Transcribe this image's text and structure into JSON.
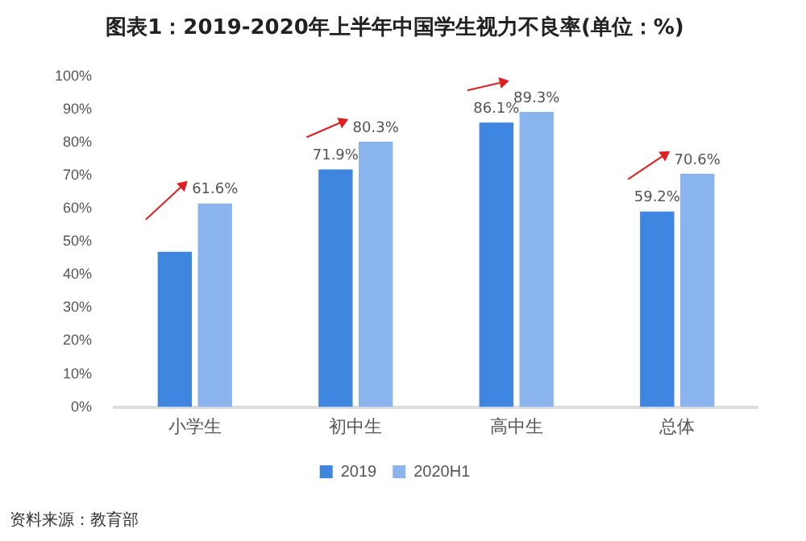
{
  "chart_data": {
    "type": "bar",
    "title": "图表1：2019-2020年上半年中国学生视力不良率(单位：%)",
    "categories": [
      "小学生",
      "初中生",
      "高中生",
      "总体"
    ],
    "series": [
      {
        "name": "2019",
        "color": "#3f86e0",
        "values": [
          47,
          71.9,
          86.1,
          59.2
        ],
        "value_labels": [
          null,
          "71.9%",
          "86.1%",
          "59.2%"
        ]
      },
      {
        "name": "2020H1",
        "color": "#8ab4ee",
        "values": [
          61.6,
          80.3,
          89.3,
          70.6
        ],
        "value_labels": [
          "61.6%",
          "80.3%",
          "89.3%",
          "70.6%"
        ]
      }
    ],
    "ylim": [
      0,
      100
    ],
    "yticks": [
      {
        "value": 0,
        "label": "0%"
      },
      {
        "value": 10,
        "label": "10%"
      },
      {
        "value": 20,
        "label": "20%"
      },
      {
        "value": 30,
        "label": "30%"
      },
      {
        "value": 40,
        "label": "40%"
      },
      {
        "value": 50,
        "label": "50%"
      },
      {
        "value": 60,
        "label": "60%"
      },
      {
        "value": 70,
        "label": "70%"
      },
      {
        "value": 80,
        "label": "80%"
      },
      {
        "value": 90,
        "label": "90%"
      },
      {
        "value": 100,
        "label": "100%"
      }
    ],
    "grid": false,
    "legend": "bottom",
    "annotations": [
      "资料来源：教育部"
    ]
  }
}
